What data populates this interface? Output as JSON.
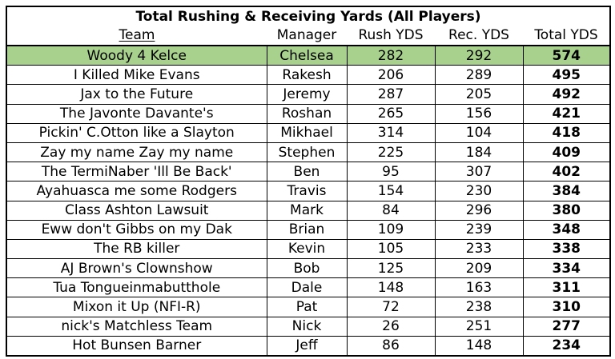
{
  "title": "Total Rushing & Receiving Yards (All Players)",
  "columns": [
    "Team",
    "Manager",
    "Rush YDS",
    "Rec. YDS",
    "Total YDS"
  ],
  "highlight_color": "#a9d18e",
  "rows": [
    {
      "team": "Woody 4 Kelce",
      "manager": "Chelsea",
      "rush": "282",
      "rec": "292",
      "total": "574"
    },
    {
      "team": "I Killed Mike Evans",
      "manager": "Rakesh",
      "rush": "206",
      "rec": "289",
      "total": "495"
    },
    {
      "team": "Jax to the Future",
      "manager": "Jeremy",
      "rush": "287",
      "rec": "205",
      "total": "492"
    },
    {
      "team": "The Javonte Davante's",
      "manager": "Roshan",
      "rush": "265",
      "rec": "156",
      "total": "421"
    },
    {
      "team": "Pickin' C.Otton like a Slayton",
      "manager": "Mikhael",
      "rush": "314",
      "rec": "104",
      "total": "418"
    },
    {
      "team": "Zay my name Zay my name",
      "manager": "Stephen",
      "rush": "225",
      "rec": "184",
      "total": "409"
    },
    {
      "team": "The TermiNaber 'Ill Be Back'",
      "manager": "Ben",
      "rush": "95",
      "rec": "307",
      "total": "402"
    },
    {
      "team": "Ayahuasca me some Rodgers",
      "manager": "Travis",
      "rush": "154",
      "rec": "230",
      "total": "384"
    },
    {
      "team": "Class Ashton Lawsuit",
      "manager": "Mark",
      "rush": "84",
      "rec": "296",
      "total": "380"
    },
    {
      "team": "Eww don't Gibbs on my Dak",
      "manager": "Brian",
      "rush": "109",
      "rec": "239",
      "total": "348"
    },
    {
      "team": "The RB killer",
      "manager": "Kevin",
      "rush": "105",
      "rec": "233",
      "total": "338"
    },
    {
      "team": "AJ Brown's Clownshow",
      "manager": "Bob",
      "rush": "125",
      "rec": "209",
      "total": "334"
    },
    {
      "team": "Tua Tongueinmabutthole",
      "manager": "Dale",
      "rush": "148",
      "rec": "163",
      "total": "311"
    },
    {
      "team": "Mixon it Up (NFI-R)",
      "manager": "Pat",
      "rush": "72",
      "rec": "238",
      "total": "310"
    },
    {
      "team": "nick's Matchless Team",
      "manager": "Nick",
      "rush": "26",
      "rec": "251",
      "total": "277"
    },
    {
      "team": "Hot Bunsen Barner",
      "manager": "Jeff",
      "rush": "86",
      "rec": "148",
      "total": "234"
    }
  ]
}
